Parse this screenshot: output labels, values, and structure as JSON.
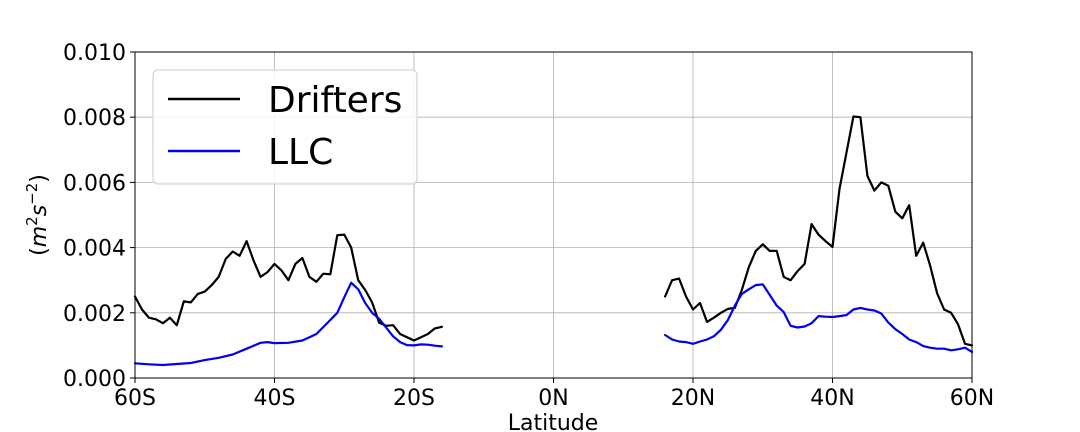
{
  "chart_data": {
    "type": "line",
    "title": "",
    "xlabel": "Latitude",
    "ylabel": "(m²s⁻²)",
    "ylabel_parts": {
      "open": "(",
      "m": "m",
      "m_exp": "2",
      "s": "s",
      "s_exp": "−2",
      "close": ")"
    },
    "xlim": [
      -60,
      60
    ],
    "ylim": [
      0,
      0.01
    ],
    "x_ticks": [
      {
        "value": -60,
        "label": "60S"
      },
      {
        "value": -40,
        "label": "40S"
      },
      {
        "value": -20,
        "label": "20S"
      },
      {
        "value": 0,
        "label": "0N"
      },
      {
        "value": 20,
        "label": "20N"
      },
      {
        "value": 40,
        "label": "40N"
      },
      {
        "value": 60,
        "label": "60N"
      }
    ],
    "y_ticks": [
      {
        "value": 0,
        "label": "0.000"
      },
      {
        "value": 0.002,
        "label": "0.002"
      },
      {
        "value": 0.004,
        "label": "0.004"
      },
      {
        "value": 0.006,
        "label": "0.006"
      },
      {
        "value": 0.008,
        "label": "0.008"
      },
      {
        "value": 0.01,
        "label": "0.010"
      }
    ],
    "grid": true,
    "legend_position": "top-left",
    "series": [
      {
        "name": "Drifters",
        "color": "#000000",
        "segments": [
          [
            [
              -60,
              0.0025
            ],
            [
              -59,
              0.0021
            ],
            [
              -58,
              0.00185
            ],
            [
              -57,
              0.0018
            ],
            [
              -56,
              0.00168
            ],
            [
              -55,
              0.00185
            ],
            [
              -54,
              0.00162
            ],
            [
              -53,
              0.00235
            ],
            [
              -52,
              0.00232
            ],
            [
              -51,
              0.00258
            ],
            [
              -50,
              0.00265
            ],
            [
              -49,
              0.00285
            ],
            [
              -48,
              0.0031
            ],
            [
              -47,
              0.00365
            ],
            [
              -46,
              0.00388
            ],
            [
              -45,
              0.00375
            ],
            [
              -44,
              0.0042
            ],
            [
              -43,
              0.0036
            ],
            [
              -42,
              0.0031
            ],
            [
              -41,
              0.00325
            ],
            [
              -40,
              0.0035
            ],
            [
              -39,
              0.0033
            ],
            [
              -38,
              0.003
            ],
            [
              -37,
              0.0035
            ],
            [
              -36,
              0.00368
            ],
            [
              -35,
              0.0031
            ],
            [
              -34,
              0.00295
            ],
            [
              -33,
              0.0032
            ],
            [
              -32,
              0.00318
            ],
            [
              -31,
              0.00438
            ],
            [
              -30,
              0.0044
            ],
            [
              -29,
              0.004
            ],
            [
              -28,
              0.003
            ],
            [
              -27,
              0.0027
            ],
            [
              -26,
              0.00232
            ],
            [
              -25,
              0.0017
            ],
            [
              -24,
              0.0016
            ],
            [
              -23,
              0.00162
            ],
            [
              -22,
              0.00135
            ],
            [
              -21,
              0.00125
            ],
            [
              -20,
              0.00115
            ],
            [
              -19,
              0.00125
            ],
            [
              -18,
              0.00135
            ],
            [
              -17,
              0.00152
            ],
            [
              -16,
              0.00157
            ]
          ],
          [
            [
              16,
              0.0025
            ],
            [
              17,
              0.003
            ],
            [
              18,
              0.00305
            ],
            [
              19,
              0.0025
            ],
            [
              20,
              0.0021
            ],
            [
              21,
              0.0023
            ],
            [
              22,
              0.00172
            ],
            [
              23,
              0.00185
            ],
            [
              24,
              0.002
            ],
            [
              25,
              0.00212
            ],
            [
              26,
              0.00215
            ],
            [
              27,
              0.0027
            ],
            [
              28,
              0.0034
            ],
            [
              29,
              0.0039
            ],
            [
              30,
              0.0041
            ],
            [
              31,
              0.0039
            ],
            [
              32,
              0.0039
            ],
            [
              33,
              0.0031
            ],
            [
              34,
              0.003
            ],
            [
              35,
              0.00328
            ],
            [
              36,
              0.0035
            ],
            [
              37,
              0.00472
            ],
            [
              38,
              0.0044
            ],
            [
              39,
              0.0042
            ],
            [
              40,
              0.00402
            ],
            [
              41,
              0.0058
            ],
            [
              42,
              0.0069
            ],
            [
              43,
              0.00802
            ],
            [
              44,
              0.008
            ],
            [
              45,
              0.0062
            ],
            [
              46,
              0.00575
            ],
            [
              47,
              0.006
            ],
            [
              48,
              0.0059
            ],
            [
              49,
              0.0051
            ],
            [
              50,
              0.0049
            ],
            [
              51,
              0.0053
            ],
            [
              52,
              0.00375
            ],
            [
              53,
              0.00415
            ],
            [
              54,
              0.00345
            ],
            [
              55,
              0.0026
            ],
            [
              56,
              0.0021
            ],
            [
              57,
              0.002
            ],
            [
              58,
              0.00165
            ],
            [
              59,
              0.00105
            ],
            [
              60,
              0.001
            ]
          ]
        ]
      },
      {
        "name": "LLC",
        "color": "#0000ee",
        "segments": [
          [
            [
              -60,
              0.00045
            ],
            [
              -58,
              0.00042
            ],
            [
              -56,
              0.0004
            ],
            [
              -54,
              0.00043
            ],
            [
              -52,
              0.00046
            ],
            [
              -50,
              0.00055
            ],
            [
              -48,
              0.00062
            ],
            [
              -46,
              0.00072
            ],
            [
              -44,
              0.0009
            ],
            [
              -42,
              0.00108
            ],
            [
              -41,
              0.0011
            ],
            [
              -40,
              0.00107
            ],
            [
              -38,
              0.00108
            ],
            [
              -36,
              0.00115
            ],
            [
              -34,
              0.00135
            ],
            [
              -32,
              0.00178
            ],
            [
              -31,
              0.002
            ],
            [
              -30,
              0.00248
            ],
            [
              -29,
              0.00292
            ],
            [
              -28,
              0.00272
            ],
            [
              -27,
              0.0023
            ],
            [
              -26,
              0.002
            ],
            [
              -25,
              0.00182
            ],
            [
              -24,
              0.00155
            ],
            [
              -23,
              0.00128
            ],
            [
              -22,
              0.0011
            ],
            [
              -21,
              0.00101
            ],
            [
              -20,
              0.001
            ],
            [
              -19,
              0.00103
            ],
            [
              -18,
              0.00102
            ],
            [
              -17,
              0.00099
            ],
            [
              -16,
              0.00097
            ]
          ],
          [
            [
              16,
              0.00132
            ],
            [
              17,
              0.00118
            ],
            [
              18,
              0.00112
            ],
            [
              19,
              0.0011
            ],
            [
              20,
              0.00105
            ],
            [
              21,
              0.00112
            ],
            [
              22,
              0.00118
            ],
            [
              23,
              0.00128
            ],
            [
              24,
              0.00148
            ],
            [
              25,
              0.00178
            ],
            [
              26,
              0.00222
            ],
            [
              27,
              0.00258
            ],
            [
              28,
              0.00272
            ],
            [
              29,
              0.00285
            ],
            [
              30,
              0.00287
            ],
            [
              31,
              0.00255
            ],
            [
              32,
              0.00222
            ],
            [
              33,
              0.00202
            ],
            [
              34,
              0.0016
            ],
            [
              35,
              0.00155
            ],
            [
              36,
              0.00158
            ],
            [
              37,
              0.00168
            ],
            [
              38,
              0.0019
            ],
            [
              39,
              0.00188
            ],
            [
              40,
              0.00187
            ],
            [
              41,
              0.0019
            ],
            [
              42,
              0.00193
            ],
            [
              43,
              0.0021
            ],
            [
              44,
              0.00215
            ],
            [
              45,
              0.0021
            ],
            [
              46,
              0.00207
            ],
            [
              47,
              0.00198
            ],
            [
              48,
              0.0017
            ],
            [
              49,
              0.0015
            ],
            [
              50,
              0.00135
            ],
            [
              51,
              0.00118
            ],
            [
              52,
              0.0011
            ],
            [
              53,
              0.00098
            ],
            [
              54,
              0.00093
            ],
            [
              55,
              0.0009
            ],
            [
              56,
              0.0009
            ],
            [
              57,
              0.00085
            ],
            [
              58,
              0.00088
            ],
            [
              59,
              0.00093
            ],
            [
              60,
              0.0008
            ]
          ]
        ]
      }
    ]
  }
}
